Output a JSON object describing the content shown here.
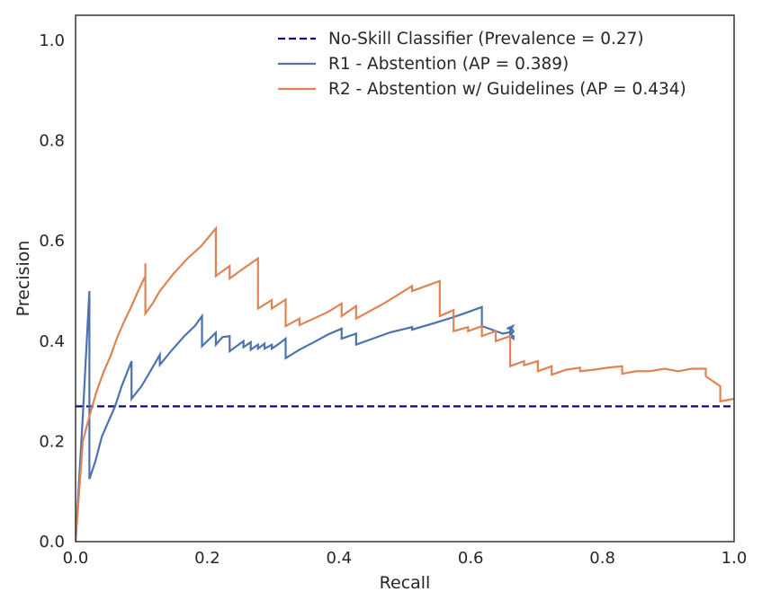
{
  "chart_data": {
    "type": "line",
    "title": "",
    "xlabel": "Recall",
    "ylabel": "Precision",
    "xlim": [
      0,
      1
    ],
    "ylim": [
      0,
      1.05
    ],
    "grid": false,
    "legend_position": "top-right",
    "xticks": [
      "0.0",
      "0.2",
      "0.4",
      "0.6",
      "0.8",
      "1.0"
    ],
    "yticks": [
      "0.0",
      "0.2",
      "0.4",
      "0.6",
      "0.8",
      "1.0"
    ],
    "series": [
      {
        "name": "No-Skill Classifier (Prevalence = 0.27)",
        "color": "#0a0a80",
        "dash": true,
        "points": [
          [
            0,
            0.27
          ],
          [
            1,
            0.27
          ]
        ]
      },
      {
        "name": "R1 - Abstention (AP = 0.389)",
        "color": "#4c72b0",
        "dash": false,
        "points": [
          [
            0,
            0
          ],
          [
            0.011,
            0.25
          ],
          [
            0.021,
            0.5
          ],
          [
            0.021,
            0.125
          ],
          [
            0.03,
            0.16
          ],
          [
            0.04,
            0.21
          ],
          [
            0.05,
            0.24
          ],
          [
            0.06,
            0.27
          ],
          [
            0.07,
            0.31
          ],
          [
            0.085,
            0.36
          ],
          [
            0.085,
            0.285
          ],
          [
            0.1,
            0.31
          ],
          [
            0.118,
            0.35
          ],
          [
            0.128,
            0.373
          ],
          [
            0.128,
            0.353
          ],
          [
            0.145,
            0.38
          ],
          [
            0.165,
            0.41
          ],
          [
            0.181,
            0.43
          ],
          [
            0.192,
            0.45
          ],
          [
            0.192,
            0.39
          ],
          [
            0.213,
            0.417
          ],
          [
            0.213,
            0.393
          ],
          [
            0.223,
            0.408
          ],
          [
            0.234,
            0.41
          ],
          [
            0.234,
            0.38
          ],
          [
            0.255,
            0.4
          ],
          [
            0.255,
            0.388
          ],
          [
            0.266,
            0.398
          ],
          [
            0.266,
            0.383
          ],
          [
            0.277,
            0.393
          ],
          [
            0.277,
            0.385
          ],
          [
            0.287,
            0.395
          ],
          [
            0.287,
            0.385
          ],
          [
            0.298,
            0.393
          ],
          [
            0.298,
            0.385
          ],
          [
            0.309,
            0.395
          ],
          [
            0.319,
            0.405
          ],
          [
            0.319,
            0.366
          ],
          [
            0.34,
            0.383
          ],
          [
            0.362,
            0.398
          ],
          [
            0.383,
            0.413
          ],
          [
            0.404,
            0.425
          ],
          [
            0.404,
            0.405
          ],
          [
            0.415,
            0.41
          ],
          [
            0.426,
            0.415
          ],
          [
            0.426,
            0.393
          ],
          [
            0.447,
            0.403
          ],
          [
            0.479,
            0.418
          ],
          [
            0.511,
            0.428
          ],
          [
            0.511,
            0.423
          ],
          [
            0.542,
            0.435
          ],
          [
            0.574,
            0.448
          ],
          [
            0.596,
            0.458
          ],
          [
            0.617,
            0.468
          ],
          [
            0.617,
            0.43
          ],
          [
            0.628,
            0.425
          ],
          [
            0.638,
            0.42
          ],
          [
            0.649,
            0.415
          ],
          [
            0.66,
            0.418
          ],
          [
            0.66,
            0.425
          ],
          [
            0.66,
            0.41
          ],
          [
            0.665,
            0.405
          ],
          [
            0.665,
            0.41
          ],
          [
            0.66,
            0.41
          ],
          [
            0.665,
            0.42
          ],
          [
            0.662,
            0.425
          ],
          [
            0.664,
            0.43
          ],
          [
            0.655,
            0.425
          ],
          [
            0.66,
            0.426
          ],
          [
            0.662,
            0.41
          ]
        ]
      },
      {
        "name": "R2 - Abstention w/ Guidelines (AP = 0.434)",
        "color": "#dd8452",
        "dash": false,
        "points": [
          [
            0,
            0
          ],
          [
            0.011,
            0.2
          ],
          [
            0.021,
            0.25
          ],
          [
            0.032,
            0.3
          ],
          [
            0.043,
            0.34
          ],
          [
            0.053,
            0.37
          ],
          [
            0.064,
            0.41
          ],
          [
            0.074,
            0.44
          ],
          [
            0.085,
            0.47
          ],
          [
            0.095,
            0.5
          ],
          [
            0.106,
            0.53
          ],
          [
            0.106,
            0.555
          ],
          [
            0.106,
            0.455
          ],
          [
            0.117,
            0.475
          ],
          [
            0.128,
            0.5
          ],
          [
            0.149,
            0.535
          ],
          [
            0.17,
            0.565
          ],
          [
            0.191,
            0.59
          ],
          [
            0.213,
            0.625
          ],
          [
            0.213,
            0.53
          ],
          [
            0.234,
            0.55
          ],
          [
            0.234,
            0.525
          ],
          [
            0.255,
            0.545
          ],
          [
            0.277,
            0.565
          ],
          [
            0.277,
            0.465
          ],
          [
            0.298,
            0.482
          ],
          [
            0.298,
            0.465
          ],
          [
            0.319,
            0.483
          ],
          [
            0.319,
            0.43
          ],
          [
            0.34,
            0.445
          ],
          [
            0.34,
            0.432
          ],
          [
            0.383,
            0.458
          ],
          [
            0.404,
            0.475
          ],
          [
            0.404,
            0.45
          ],
          [
            0.426,
            0.47
          ],
          [
            0.426,
            0.445
          ],
          [
            0.468,
            0.475
          ],
          [
            0.511,
            0.51
          ],
          [
            0.511,
            0.5
          ],
          [
            0.553,
            0.52
          ],
          [
            0.553,
            0.45
          ],
          [
            0.574,
            0.462
          ],
          [
            0.574,
            0.42
          ],
          [
            0.596,
            0.428
          ],
          [
            0.596,
            0.42
          ],
          [
            0.617,
            0.43
          ],
          [
            0.617,
            0.41
          ],
          [
            0.638,
            0.42
          ],
          [
            0.638,
            0.4
          ],
          [
            0.66,
            0.41
          ],
          [
            0.66,
            0.35
          ],
          [
            0.681,
            0.36
          ],
          [
            0.681,
            0.352
          ],
          [
            0.702,
            0.36
          ],
          [
            0.702,
            0.34
          ],
          [
            0.723,
            0.35
          ],
          [
            0.723,
            0.333
          ],
          [
            0.745,
            0.343
          ],
          [
            0.766,
            0.347
          ],
          [
            0.766,
            0.34
          ],
          [
            0.787,
            0.343
          ],
          [
            0.808,
            0.347
          ],
          [
            0.83,
            0.35
          ],
          [
            0.83,
            0.335
          ],
          [
            0.851,
            0.34
          ],
          [
            0.872,
            0.34
          ],
          [
            0.894,
            0.345
          ],
          [
            0.915,
            0.34
          ],
          [
            0.936,
            0.345
          ],
          [
            0.957,
            0.345
          ],
          [
            0.957,
            0.33
          ],
          [
            0.979,
            0.31
          ],
          [
            0.979,
            0.28
          ],
          [
            1.0,
            0.285
          ]
        ]
      }
    ]
  }
}
